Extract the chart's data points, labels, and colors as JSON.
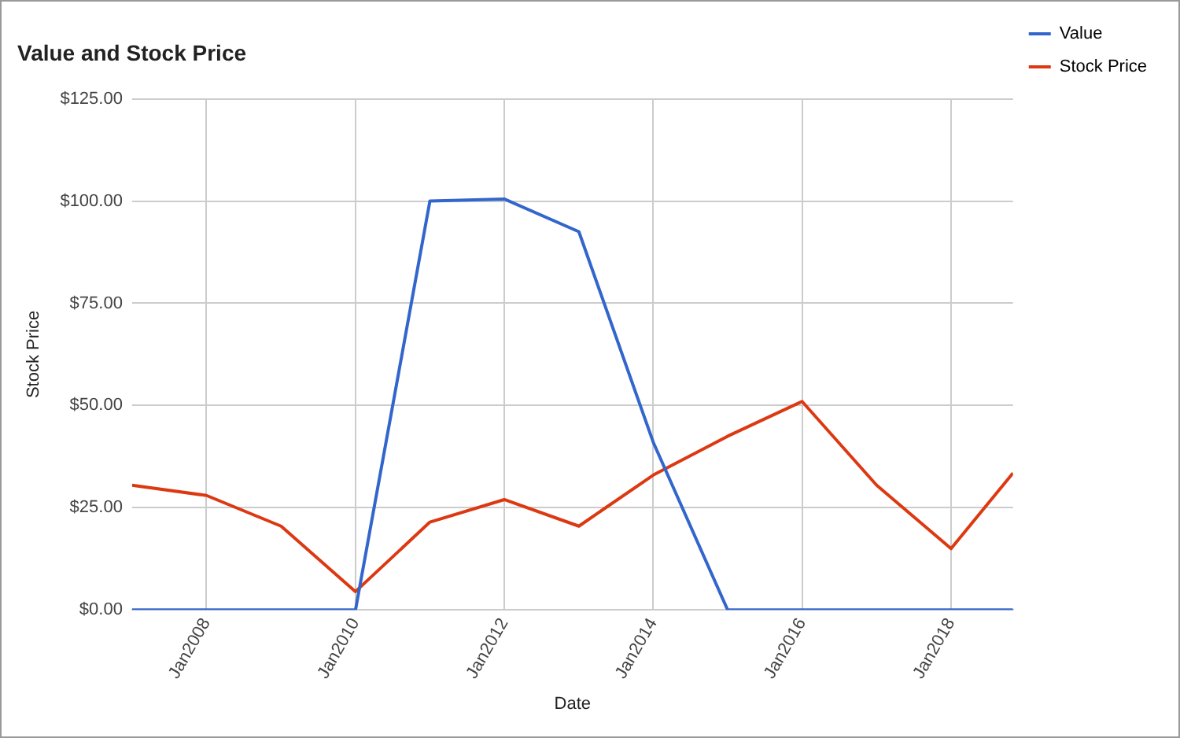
{
  "chart_data": {
    "type": "line",
    "title": "Value and Stock Price",
    "xlabel": "Date",
    "ylabel": "Stock Price",
    "x": [
      "2007-01",
      "2008-01",
      "2009-01",
      "2010-01",
      "2011-01",
      "2012-01",
      "2013-01",
      "2014-01",
      "2015-01",
      "2016-01",
      "2017-01",
      "2018-01",
      "2018-11"
    ],
    "series": [
      {
        "name": "Value",
        "color": "#3366cc",
        "values": [
          0,
          0,
          0,
          0,
          100,
          100.5,
          92.5,
          41,
          0,
          0,
          0,
          0,
          0
        ]
      },
      {
        "name": "Stock Price",
        "color": "#dc3912",
        "values": [
          30.5,
          28,
          20.5,
          4.5,
          21.5,
          27,
          20.5,
          33,
          42.5,
          51,
          30.5,
          15,
          33.5
        ]
      }
    ],
    "xlim": [
      "2007-01",
      "2018-11"
    ],
    "xticks": [
      {
        "value": "2008-01",
        "label": "Jan2008"
      },
      {
        "value": "2010-01",
        "label": "Jan2010"
      },
      {
        "value": "2012-01",
        "label": "Jan2012"
      },
      {
        "value": "2014-01",
        "label": "Jan2014"
      },
      {
        "value": "2016-01",
        "label": "Jan2016"
      },
      {
        "value": "2018-01",
        "label": "Jan2018"
      }
    ],
    "ylim": [
      0,
      125
    ],
    "yticks": [
      {
        "value": 0,
        "label": "$0.00"
      },
      {
        "value": 25,
        "label": "$25.00"
      },
      {
        "value": 50,
        "label": "$50.00"
      },
      {
        "value": 75,
        "label": "$75.00"
      },
      {
        "value": 100,
        "label": "$100.00"
      },
      {
        "value": 125,
        "label": "$125.00"
      }
    ],
    "grid": true,
    "legend": "top right",
    "marker": "none",
    "line_style": "solid"
  }
}
